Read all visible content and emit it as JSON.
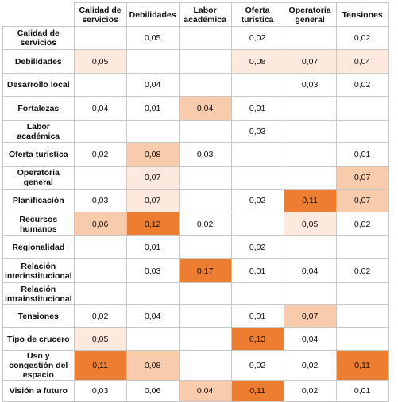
{
  "table": {
    "columns": [
      "Calidad de servicios",
      "Debilidades",
      "Labor académica",
      "Oferta turística",
      "Operatoria general",
      "Tensiones"
    ],
    "rows": [
      {
        "label": "Calidad de servicios",
        "cells": [
          {
            "v": "",
            "c": 0
          },
          {
            "v": "0,05",
            "c": 0
          },
          {
            "v": "",
            "c": 0
          },
          {
            "v": "0,02",
            "c": 0
          },
          {
            "v": "",
            "c": 0
          },
          {
            "v": "0,02",
            "c": 0
          }
        ]
      },
      {
        "label": "Debilidades",
        "cells": [
          {
            "v": "0,05",
            "c": 1
          },
          {
            "v": "",
            "c": 0
          },
          {
            "v": "",
            "c": 0
          },
          {
            "v": "0,08",
            "c": 1
          },
          {
            "v": "0,07",
            "c": 1
          },
          {
            "v": "0,04",
            "c": 1
          }
        ]
      },
      {
        "label": "Desarrollo local",
        "cells": [
          {
            "v": "",
            "c": 0
          },
          {
            "v": "0,04",
            "c": 0
          },
          {
            "v": "",
            "c": 0
          },
          {
            "v": "",
            "c": 0
          },
          {
            "v": "0,03",
            "c": 0
          },
          {
            "v": "0,02",
            "c": 0
          }
        ]
      },
      {
        "label": "Fortalezas",
        "cells": [
          {
            "v": "0,04",
            "c": 0
          },
          {
            "v": "0,01",
            "c": 0
          },
          {
            "v": "0,04",
            "c": 2
          },
          {
            "v": "0,01",
            "c": 0
          },
          {
            "v": "",
            "c": 0
          },
          {
            "v": "",
            "c": 0
          }
        ]
      },
      {
        "label": "Labor académica",
        "cells": [
          {
            "v": "",
            "c": 0
          },
          {
            "v": "",
            "c": 0
          },
          {
            "v": "",
            "c": 0
          },
          {
            "v": "0,03",
            "c": 0
          },
          {
            "v": "",
            "c": 0
          },
          {
            "v": "",
            "c": 0
          }
        ]
      },
      {
        "label": "Oferta turística",
        "cells": [
          {
            "v": "0,02",
            "c": 0
          },
          {
            "v": "0,08",
            "c": 2
          },
          {
            "v": "0,03",
            "c": 0
          },
          {
            "v": "",
            "c": 0
          },
          {
            "v": "",
            "c": 0
          },
          {
            "v": "0,01",
            "c": 0
          }
        ]
      },
      {
        "label": "Operatoria general",
        "cells": [
          {
            "v": "",
            "c": 0
          },
          {
            "v": "0,07",
            "c": 1
          },
          {
            "v": "",
            "c": 0
          },
          {
            "v": "",
            "c": 0
          },
          {
            "v": "",
            "c": 0
          },
          {
            "v": "0,07",
            "c": 2
          }
        ]
      },
      {
        "label": "Planificación",
        "cells": [
          {
            "v": "0,03",
            "c": 0
          },
          {
            "v": "0,07",
            "c": 1
          },
          {
            "v": "",
            "c": 0
          },
          {
            "v": "0,02",
            "c": 0
          },
          {
            "v": "0,11",
            "c": 3
          },
          {
            "v": "0,07",
            "c": 2
          }
        ]
      },
      {
        "label": "Recursos humanos",
        "cells": [
          {
            "v": "0,06",
            "c": 2
          },
          {
            "v": "0,12",
            "c": 3
          },
          {
            "v": "0,02",
            "c": 0
          },
          {
            "v": "",
            "c": 0
          },
          {
            "v": "0,05",
            "c": 1
          },
          {
            "v": "0,02",
            "c": 0
          }
        ]
      },
      {
        "label": "Regionalidad",
        "cells": [
          {
            "v": "",
            "c": 0
          },
          {
            "v": "0,01",
            "c": 0
          },
          {
            "v": "",
            "c": 0
          },
          {
            "v": "0,02",
            "c": 0
          },
          {
            "v": "",
            "c": 0
          },
          {
            "v": "",
            "c": 0
          }
        ]
      },
      {
        "label": "Relación interinstitucional",
        "cells": [
          {
            "v": "",
            "c": 0
          },
          {
            "v": "0,03",
            "c": 0
          },
          {
            "v": "0,17",
            "c": 3
          },
          {
            "v": "0,01",
            "c": 0
          },
          {
            "v": "0,04",
            "c": 0
          },
          {
            "v": "0,02",
            "c": 0
          }
        ]
      },
      {
        "label": "Relación intrainstitucional",
        "cells": [
          {
            "v": "",
            "c": 0
          },
          {
            "v": "",
            "c": 0
          },
          {
            "v": "",
            "c": 0
          },
          {
            "v": "",
            "c": 0
          },
          {
            "v": "",
            "c": 0
          },
          {
            "v": "",
            "c": 0
          }
        ]
      },
      {
        "label": "Tensiones",
        "cells": [
          {
            "v": "0,02",
            "c": 0
          },
          {
            "v": "0,04",
            "c": 0
          },
          {
            "v": "",
            "c": 0
          },
          {
            "v": "0,01",
            "c": 0
          },
          {
            "v": "0,07",
            "c": 2
          },
          {
            "v": "",
            "c": 0
          }
        ]
      },
      {
        "label": "Tipo de crucero",
        "cells": [
          {
            "v": "0,05",
            "c": 1
          },
          {
            "v": "",
            "c": 0
          },
          {
            "v": "",
            "c": 0
          },
          {
            "v": "0,13",
            "c": 3
          },
          {
            "v": "0,04",
            "c": 0
          },
          {
            "v": "",
            "c": 0
          }
        ]
      },
      {
        "label": "Uso y congestión del espacio",
        "cells": [
          {
            "v": "0,11",
            "c": 3
          },
          {
            "v": "0,08",
            "c": 2
          },
          {
            "v": "",
            "c": 0
          },
          {
            "v": "0,02",
            "c": 0
          },
          {
            "v": "0,02",
            "c": 0
          },
          {
            "v": "0,11",
            "c": 3
          }
        ]
      },
      {
        "label": "Visión a futuro",
        "cells": [
          {
            "v": "0,03",
            "c": 0
          },
          {
            "v": "0,06",
            "c": 0
          },
          {
            "v": "0,04",
            "c": 2
          },
          {
            "v": "0,11",
            "c": 3
          },
          {
            "v": "0,02",
            "c": 0
          },
          {
            "v": "0,01",
            "c": 0
          }
        ]
      }
    ]
  },
  "colors": {
    "none": "#ffffff",
    "light": "#fde9de",
    "medium": "#f8cbad",
    "strong": "#ed7d31",
    "border": "#c8c8c8"
  }
}
